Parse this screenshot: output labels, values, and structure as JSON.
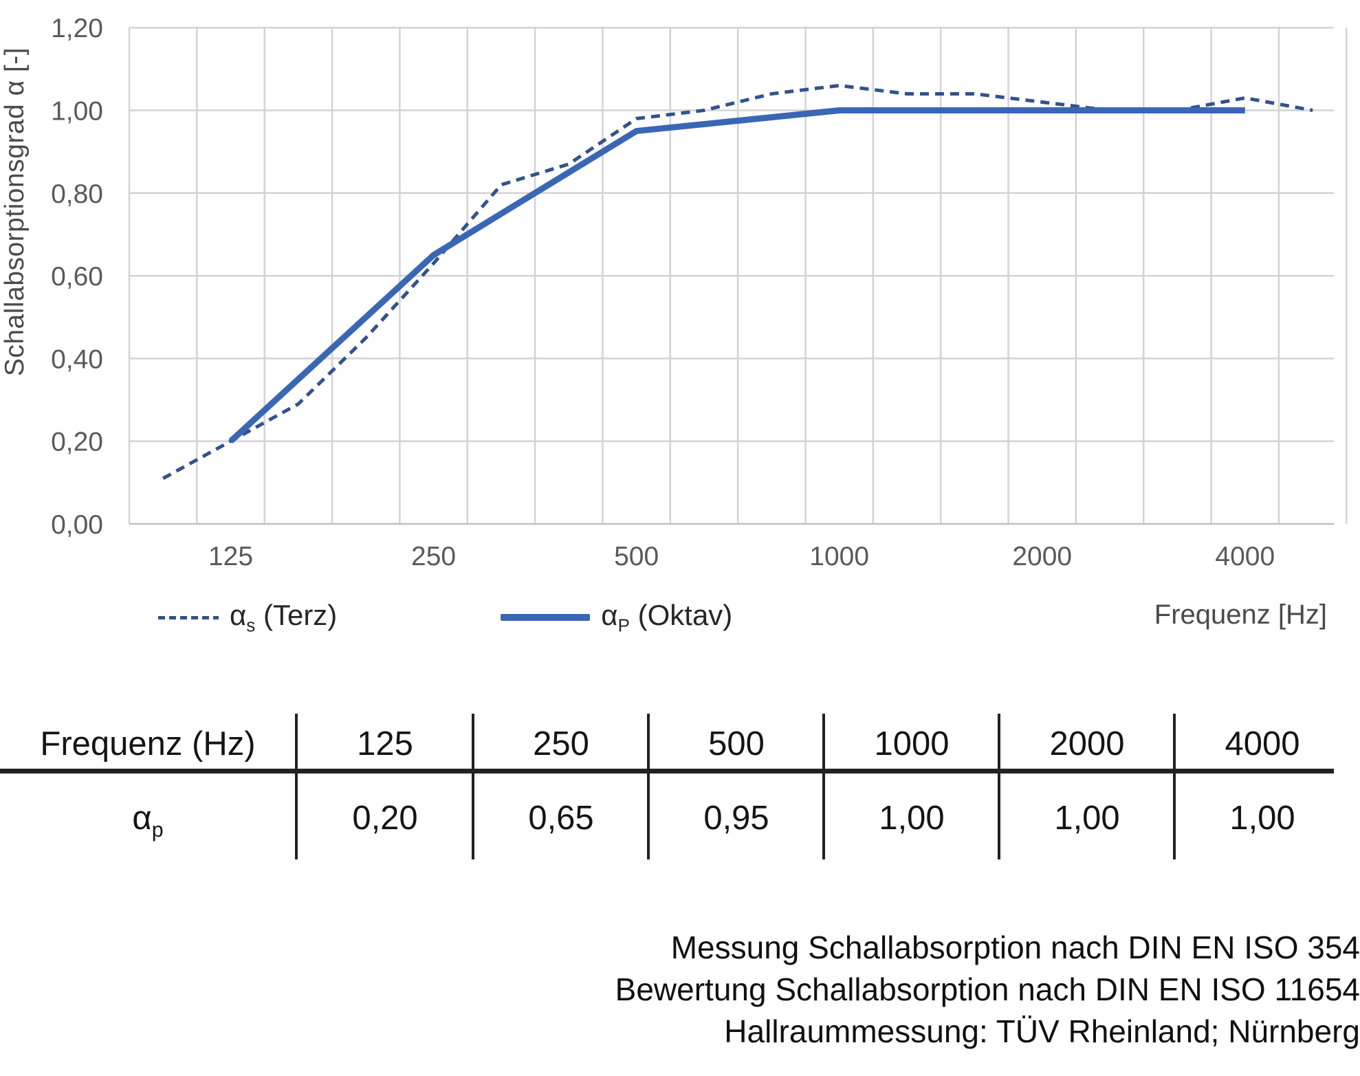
{
  "chart": {
    "y_axis_title": "Schallabsorptionsgrad α [-]",
    "x_axis_title": "Frequenz [Hz]",
    "y_tick_labels": [
      "1,20",
      "1,00",
      "0,80",
      "0,60",
      "0,40",
      "0,20",
      "0,00"
    ],
    "x_tick_labels": [
      "125",
      "250",
      "500",
      "1000",
      "2000",
      "4000"
    ],
    "colors": {
      "oktav_line": "#3A67B4",
      "terz_line": "#33518C",
      "gridline": "#D3D3D3",
      "axis_line": "#C0C0C0",
      "tick_text": "#595959"
    }
  },
  "chart_data": {
    "type": "line",
    "title": "",
    "xlabel": "Frequenz [Hz]",
    "ylabel": "Schallabsorptionsgrad α [-]",
    "x_scale": "logarithmic (1/3-octave band categories)",
    "ylim": [
      0.0,
      1.2
    ],
    "y_tick_step": 0.2,
    "grid": true,
    "legend_position": "bottom-left",
    "x_categories": [
      100,
      125,
      160,
      200,
      250,
      315,
      400,
      500,
      630,
      800,
      1000,
      1250,
      1600,
      2000,
      2500,
      3150,
      4000,
      5000
    ],
    "series": [
      {
        "name": "αs (Terz)",
        "style": "dashed",
        "color": "#33518C",
        "x": [
          100,
          125,
          160,
          200,
          250,
          315,
          400,
          500,
          630,
          800,
          1000,
          1250,
          1600,
          2000,
          2500,
          3150,
          4000,
          5000
        ],
        "values": [
          0.11,
          0.2,
          0.29,
          0.45,
          0.63,
          0.82,
          0.87,
          0.98,
          1.0,
          1.04,
          1.06,
          1.04,
          1.04,
          1.02,
          1.0,
          1.0,
          1.03,
          1.0
        ]
      },
      {
        "name": "αP (Oktav)",
        "style": "solid",
        "color": "#3A67B4",
        "x": [
          125,
          250,
          500,
          1000,
          2000,
          4000
        ],
        "values": [
          0.2,
          0.65,
          0.95,
          1.0,
          1.0,
          1.0
        ]
      }
    ]
  },
  "legend": {
    "terz": {
      "alpha": "α",
      "sub": "s",
      "rest": "(Terz)"
    },
    "oktav": {
      "alpha": "α",
      "sub": "P",
      "rest": "(Oktav)"
    }
  },
  "table": {
    "header": [
      "Frequenz (Hz)",
      "125",
      "250",
      "500",
      "1000",
      "2000",
      "4000"
    ],
    "row_label": {
      "alpha": "α",
      "sub": "p"
    },
    "values": [
      "0,20",
      "0,65",
      "0,95",
      "1,00",
      "1,00",
      "1,00"
    ]
  },
  "footer": {
    "lines": [
      "Messung Schallabsorption nach DIN EN ISO 354",
      "Bewertung Schallabsorption nach DIN EN ISO 11654",
      "Hallraummessung: TÜV Rheinland; Nürnberg"
    ]
  }
}
